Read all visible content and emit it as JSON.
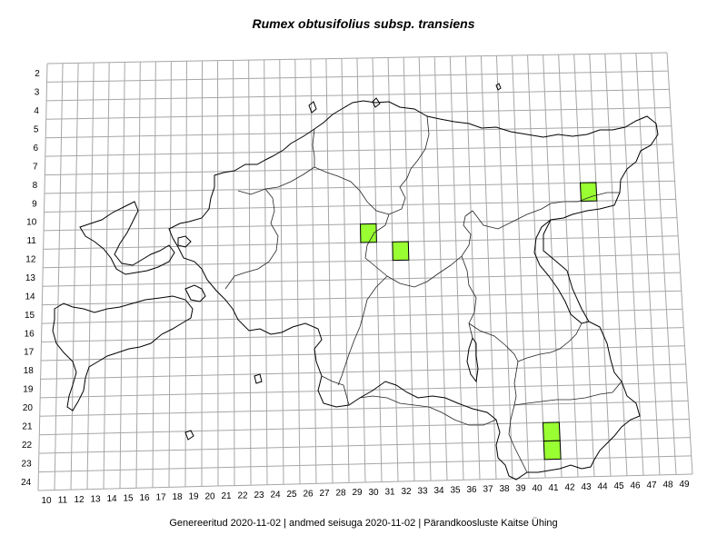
{
  "title": "Rumex obtusifolius subsp. transiens",
  "footer": "Genereeritud 2020-11-02  |  andmed seisuga 2020-11-02  |  Pärandkoosluste Kaitse Ühing",
  "grid": {
    "rows": [
      "2",
      "3",
      "4",
      "5",
      "6",
      "7",
      "8",
      "9",
      "10",
      "11",
      "12",
      "13",
      "14",
      "15",
      "16",
      "17",
      "18",
      "19",
      "20",
      "21",
      "22",
      "23",
      "24"
    ],
    "columns": [
      "10",
      "11",
      "12",
      "13",
      "14",
      "15",
      "16",
      "17",
      "18",
      "19",
      "20",
      "21",
      "22",
      "23",
      "24",
      "25",
      "26",
      "27",
      "28",
      "29",
      "30",
      "31",
      "32",
      "33",
      "34",
      "35",
      "36",
      "37",
      "38",
      "39",
      "40",
      "41",
      "42",
      "43",
      "44",
      "45",
      "46",
      "47",
      "48",
      "49"
    ]
  },
  "occupied_squares": [
    {
      "column": "30",
      "row": "11"
    },
    {
      "column": "32",
      "row": "12"
    },
    {
      "column": "44",
      "row": "9"
    },
    {
      "column": "41",
      "row": "22"
    },
    {
      "column": "41",
      "row": "23"
    }
  ],
  "colors": {
    "occupied_fill": "#99ff33",
    "grid_line": "#a6a6a6",
    "border_line": "#000000",
    "county_line": "#222222"
  }
}
